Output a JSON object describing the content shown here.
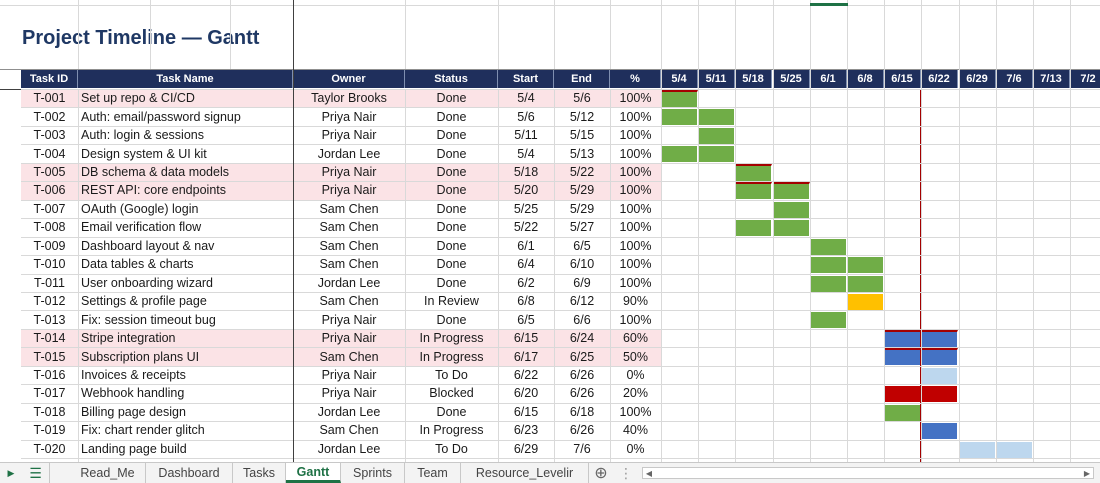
{
  "title": "Project Timeline — Gantt",
  "columns": [
    "Task ID",
    "Task Name",
    "Owner",
    "Status",
    "Start",
    "End",
    "%"
  ],
  "weeks": [
    "5/4",
    "5/11",
    "5/18",
    "5/25",
    "6/1",
    "6/8",
    "6/15",
    "6/22",
    "6/29",
    "7/6",
    "7/13",
    "7/2"
  ],
  "today_marker_date": "6/22",
  "colors": {
    "done": "#70ad47",
    "in_review": "#ffc000",
    "in_progress": "#4472c4",
    "blocked": "#c00000",
    "todo": "#bdd7ee",
    "accent": "#1f2f5c"
  },
  "tasks": [
    {
      "id": "T-001",
      "name": "Set up repo & CI/CD",
      "owner": "Taylor Brooks",
      "status": "Done",
      "start": "5/4",
      "end": "5/6",
      "pct": "100%",
      "highlight": true
    },
    {
      "id": "T-002",
      "name": "Auth: email/password signup",
      "owner": "Priya Nair",
      "status": "Done",
      "start": "5/6",
      "end": "5/12",
      "pct": "100%",
      "highlight": false
    },
    {
      "id": "T-003",
      "name": "Auth: login & sessions",
      "owner": "Priya Nair",
      "status": "Done",
      "start": "5/11",
      "end": "5/15",
      "pct": "100%",
      "highlight": false
    },
    {
      "id": "T-004",
      "name": "Design system & UI kit",
      "owner": "Jordan Lee",
      "status": "Done",
      "start": "5/4",
      "end": "5/13",
      "pct": "100%",
      "highlight": false
    },
    {
      "id": "T-005",
      "name": "DB schema & data models",
      "owner": "Priya Nair",
      "status": "Done",
      "start": "5/18",
      "end": "5/22",
      "pct": "100%",
      "highlight": true
    },
    {
      "id": "T-006",
      "name": "REST API: core endpoints",
      "owner": "Priya Nair",
      "status": "Done",
      "start": "5/20",
      "end": "5/29",
      "pct": "100%",
      "highlight": true
    },
    {
      "id": "T-007",
      "name": "OAuth (Google) login",
      "owner": "Sam Chen",
      "status": "Done",
      "start": "5/25",
      "end": "5/29",
      "pct": "100%",
      "highlight": false
    },
    {
      "id": "T-008",
      "name": "Email verification flow",
      "owner": "Sam Chen",
      "status": "Done",
      "start": "5/22",
      "end": "5/27",
      "pct": "100%",
      "highlight": false
    },
    {
      "id": "T-009",
      "name": "Dashboard layout & nav",
      "owner": "Sam Chen",
      "status": "Done",
      "start": "6/1",
      "end": "6/5",
      "pct": "100%",
      "highlight": false
    },
    {
      "id": "T-010",
      "name": "Data tables & charts",
      "owner": "Sam Chen",
      "status": "Done",
      "start": "6/4",
      "end": "6/10",
      "pct": "100%",
      "highlight": false
    },
    {
      "id": "T-011",
      "name": "User onboarding wizard",
      "owner": "Jordan Lee",
      "status": "Done",
      "start": "6/2",
      "end": "6/9",
      "pct": "100%",
      "highlight": false
    },
    {
      "id": "T-012",
      "name": "Settings & profile page",
      "owner": "Sam Chen",
      "status": "In Review",
      "start": "6/8",
      "end": "6/12",
      "pct": "90%",
      "highlight": false
    },
    {
      "id": "T-013",
      "name": "Fix: session timeout bug",
      "owner": "Priya Nair",
      "status": "Done",
      "start": "6/5",
      "end": "6/6",
      "pct": "100%",
      "highlight": false
    },
    {
      "id": "T-014",
      "name": "Stripe integration",
      "owner": "Priya Nair",
      "status": "In Progress",
      "start": "6/15",
      "end": "6/24",
      "pct": "60%",
      "highlight": true
    },
    {
      "id": "T-015",
      "name": "Subscription plans UI",
      "owner": "Sam Chen",
      "status": "In Progress",
      "start": "6/17",
      "end": "6/25",
      "pct": "50%",
      "highlight": true
    },
    {
      "id": "T-016",
      "name": "Invoices & receipts",
      "owner": "Priya Nair",
      "status": "To Do",
      "start": "6/22",
      "end": "6/26",
      "pct": "0%",
      "highlight": false
    },
    {
      "id": "T-017",
      "name": "Webhook handling",
      "owner": "Priya Nair",
      "status": "Blocked",
      "start": "6/20",
      "end": "6/26",
      "pct": "20%",
      "highlight": false
    },
    {
      "id": "T-018",
      "name": "Billing page design",
      "owner": "Jordan Lee",
      "status": "Done",
      "start": "6/15",
      "end": "6/18",
      "pct": "100%",
      "highlight": false
    },
    {
      "id": "T-019",
      "name": "Fix: chart render glitch",
      "owner": "Sam Chen",
      "status": "In Progress",
      "start": "6/23",
      "end": "6/26",
      "pct": "40%",
      "highlight": false
    },
    {
      "id": "T-020",
      "name": "Landing page build",
      "owner": "Jordan Lee",
      "status": "To Do",
      "start": "6/29",
      "end": "7/6",
      "pct": "0%",
      "highlight": false
    }
  ],
  "sheet_tabs": [
    "Read_Me",
    "Dashboard",
    "Tasks",
    "Gantt",
    "Sprints",
    "Team",
    "Resource_Levelir"
  ],
  "active_tab": "Gantt"
}
